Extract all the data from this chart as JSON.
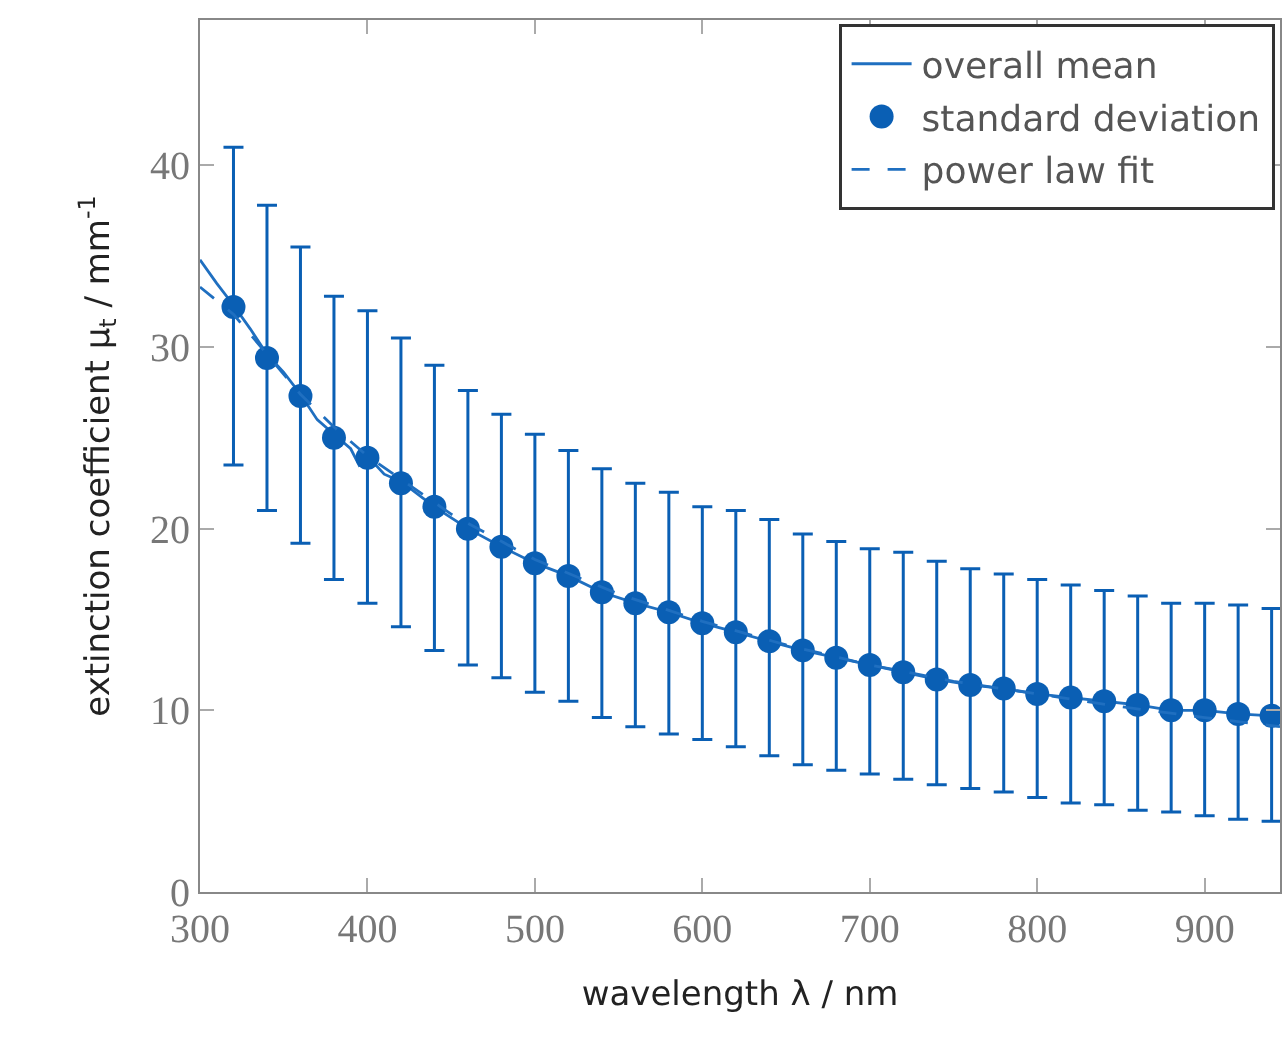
{
  "chart_data": {
    "type": "line",
    "xlabel": "wavelength λ / nm",
    "ylabel": "extinction coefficient μ$_{t}$ / mm$^{-1}$",
    "xlim": [
      300,
      945
    ],
    "ylim": [
      0,
      48
    ],
    "xticks": [
      300,
      400,
      500,
      600,
      700,
      800,
      900
    ],
    "yticks": [
      0,
      10,
      20,
      30,
      40
    ],
    "legend": "top right",
    "series": [
      {
        "name": "overall mean",
        "line_style": "solid",
        "marker": "none",
        "color": "#1f6fc0",
        "x": [
          300,
          310,
          320,
          330,
          340,
          350,
          360,
          370,
          380,
          390,
          395,
          400,
          410,
          420,
          440,
          460,
          480,
          500,
          520,
          540,
          560,
          580,
          600,
          620,
          640,
          660,
          680,
          700,
          720,
          740,
          760,
          780,
          800,
          820,
          840,
          860,
          880,
          900,
          920,
          940,
          945
        ],
        "values": [
          34.8,
          33.5,
          32.3,
          31.0,
          29.6,
          28.6,
          27.4,
          26.0,
          25.2,
          24.4,
          23.5,
          24.0,
          23.0,
          22.6,
          21.2,
          20.0,
          19.0,
          18.1,
          17.4,
          16.5,
          15.9,
          15.4,
          14.8,
          14.3,
          13.8,
          13.3,
          12.9,
          12.5,
          12.1,
          11.7,
          11.4,
          11.2,
          10.9,
          10.7,
          10.5,
          10.3,
          10.0,
          10.0,
          9.8,
          9.7,
          9.7
        ]
      },
      {
        "name": "standard deviation",
        "type": "scatter",
        "marker": "circle",
        "color": "#0a5fb4",
        "x": [
          320,
          340,
          360,
          380,
          400,
          420,
          440,
          460,
          480,
          500,
          520,
          540,
          560,
          580,
          600,
          620,
          640,
          660,
          680,
          700,
          720,
          740,
          760,
          780,
          800,
          820,
          840,
          860,
          880,
          900,
          920,
          940
        ],
        "values": [
          32.2,
          29.4,
          27.3,
          25.0,
          23.9,
          22.5,
          21.2,
          20.0,
          19.0,
          18.1,
          17.4,
          16.5,
          15.9,
          15.4,
          14.8,
          14.3,
          13.8,
          13.3,
          12.9,
          12.5,
          12.1,
          11.7,
          11.4,
          11.2,
          10.9,
          10.7,
          10.5,
          10.3,
          10.0,
          10.0,
          9.8,
          9.7
        ],
        "errors": [
          [
            23.5,
            41
          ],
          [
            21,
            37.8
          ],
          [
            19.2,
            35.5
          ],
          [
            17.2,
            32.8
          ],
          [
            15.9,
            32
          ],
          [
            14.6,
            30.5
          ],
          [
            13.3,
            29
          ],
          [
            12.5,
            27.6
          ],
          [
            11.8,
            26.3
          ],
          [
            11,
            25.2
          ],
          [
            10.5,
            24.3
          ],
          [
            9.6,
            23.3
          ],
          [
            9.1,
            22.5
          ],
          [
            8.7,
            22
          ],
          [
            8.4,
            21.2
          ],
          [
            8.0,
            21
          ],
          [
            7.5,
            20.5
          ],
          [
            7.0,
            19.7
          ],
          [
            6.7,
            19.3
          ],
          [
            6.5,
            18.9
          ],
          [
            6.2,
            18.7
          ],
          [
            5.9,
            18.2
          ],
          [
            5.7,
            17.8
          ],
          [
            5.5,
            17.5
          ],
          [
            5.2,
            17.2
          ],
          [
            4.9,
            16.9
          ],
          [
            4.8,
            16.6
          ],
          [
            4.5,
            16.3
          ],
          [
            4.4,
            15.9
          ],
          [
            4.2,
            15.9
          ],
          [
            4.0,
            15.8
          ],
          [
            3.9,
            15.6
          ]
        ]
      },
      {
        "name": "power law fit",
        "line_style": "dashed",
        "marker": "none",
        "color": "#1f6fc0",
        "x": [
          300,
          320,
          340,
          360,
          380,
          400,
          450,
          500,
          550,
          600,
          650,
          700,
          750,
          800,
          850,
          900,
          945
        ],
        "values": [
          33.3,
          31.8,
          29.6,
          27.4,
          25.6,
          24.0,
          20.8,
          18.3,
          16.4,
          14.9,
          13.6,
          12.5,
          11.6,
          10.9,
          10.2,
          9.6,
          9.1
        ]
      }
    ]
  }
}
